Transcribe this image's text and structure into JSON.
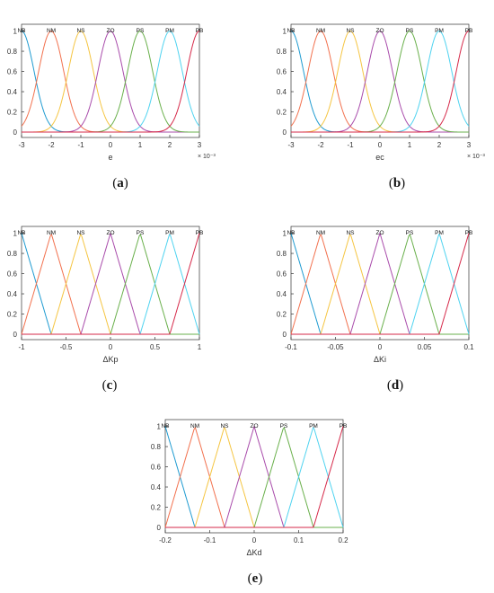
{
  "panels": [
    {
      "id": "a",
      "caption_letter": "a",
      "chart_data": {
        "type": "line",
        "shape": "gaussian",
        "xlabel": "e",
        "exponent_label": "× 10⁻³",
        "xlim": [
          -3,
          3
        ],
        "ylim": [
          0,
          1
        ],
        "xticks": [
          -3,
          -2,
          -1,
          0,
          1,
          2,
          3
        ],
        "xtick_labels": [
          "-3",
          "-2",
          "-1",
          "0",
          "1",
          "2",
          "3"
        ],
        "yticks": [
          0,
          0.2,
          0.4,
          0.6,
          0.8,
          1
        ],
        "ytick_labels": [
          "0",
          "0.2",
          "0.4",
          "0.6",
          "0.8",
          "1"
        ],
        "sigma": 0.42,
        "grid": false,
        "series": [
          {
            "name": "NB",
            "center": -3,
            "color": "#1f9bd1"
          },
          {
            "name": "NM",
            "center": -2,
            "color": "#f2714e"
          },
          {
            "name": "NS",
            "center": -1,
            "color": "#f5c542"
          },
          {
            "name": "ZO",
            "center": 0,
            "color": "#a94cab"
          },
          {
            "name": "PS",
            "center": 1,
            "color": "#6ab04c"
          },
          {
            "name": "PM",
            "center": 2,
            "color": "#4fd3f0"
          },
          {
            "name": "PB",
            "center": 3,
            "color": "#d62a4a"
          }
        ]
      }
    },
    {
      "id": "b",
      "caption_letter": "b",
      "chart_data": {
        "type": "line",
        "shape": "gaussian",
        "xlabel": "ec",
        "exponent_label": "× 10⁻³",
        "xlim": [
          -3,
          3
        ],
        "ylim": [
          0,
          1
        ],
        "xticks": [
          -3,
          -2,
          -1,
          0,
          1,
          2,
          3
        ],
        "xtick_labels": [
          "-3",
          "-2",
          "-1",
          "0",
          "1",
          "2",
          "3"
        ],
        "yticks": [
          0,
          0.2,
          0.4,
          0.6,
          0.8,
          1
        ],
        "ytick_labels": [
          "0",
          "0.2",
          "0.4",
          "0.6",
          "0.8",
          "1"
        ],
        "sigma": 0.42,
        "grid": false,
        "series": [
          {
            "name": "NB",
            "center": -3,
            "color": "#1f9bd1"
          },
          {
            "name": "NM",
            "center": -2,
            "color": "#f2714e"
          },
          {
            "name": "NS",
            "center": -1,
            "color": "#f5c542"
          },
          {
            "name": "ZO",
            "center": 0,
            "color": "#a94cab"
          },
          {
            "name": "PS",
            "center": 1,
            "color": "#6ab04c"
          },
          {
            "name": "PM",
            "center": 2,
            "color": "#4fd3f0"
          },
          {
            "name": "PB",
            "center": 3,
            "color": "#d62a4a"
          }
        ]
      }
    },
    {
      "id": "c",
      "caption_letter": "c",
      "chart_data": {
        "type": "line",
        "shape": "triangular",
        "xlabel": "ΔKp",
        "exponent_label": "",
        "xlim": [
          -1,
          1
        ],
        "ylim": [
          0,
          1
        ],
        "xticks": [
          -1,
          -0.5,
          0,
          0.5,
          1
        ],
        "xtick_labels": [
          "-1",
          "-0.5",
          "0",
          "0.5",
          "1"
        ],
        "yticks": [
          0,
          0.2,
          0.4,
          0.6,
          0.8,
          1
        ],
        "ytick_labels": [
          "0",
          "0.2",
          "0.4",
          "0.6",
          "0.8",
          "1"
        ],
        "half_width": 0.3333,
        "grid": false,
        "series": [
          {
            "name": "NB",
            "center": -1,
            "color": "#1f9bd1"
          },
          {
            "name": "NM",
            "center": -0.6667,
            "color": "#f2714e"
          },
          {
            "name": "NS",
            "center": -0.3333,
            "color": "#f5c542"
          },
          {
            "name": "ZO",
            "center": 0,
            "color": "#a94cab"
          },
          {
            "name": "PS",
            "center": 0.3333,
            "color": "#6ab04c"
          },
          {
            "name": "PM",
            "center": 0.6667,
            "color": "#4fd3f0"
          },
          {
            "name": "PB",
            "center": 1,
            "color": "#d62a4a"
          }
        ]
      }
    },
    {
      "id": "d",
      "caption_letter": "d",
      "chart_data": {
        "type": "line",
        "shape": "triangular",
        "xlabel": "ΔKi",
        "exponent_label": "",
        "xlim": [
          -0.1,
          0.1
        ],
        "ylim": [
          0,
          1
        ],
        "xticks": [
          -0.1,
          -0.05,
          0,
          0.05,
          0.1
        ],
        "xtick_labels": [
          "-0.1",
          "-0.05",
          "0",
          "0.05",
          "0.1"
        ],
        "yticks": [
          0,
          0.2,
          0.4,
          0.6,
          0.8,
          1
        ],
        "ytick_labels": [
          "0",
          "0.2",
          "0.4",
          "0.6",
          "0.8",
          "1"
        ],
        "half_width": 0.03333,
        "grid": false,
        "series": [
          {
            "name": "NB",
            "center": -0.1,
            "color": "#1f9bd1"
          },
          {
            "name": "NM",
            "center": -0.06667,
            "color": "#f2714e"
          },
          {
            "name": "NS",
            "center": -0.03333,
            "color": "#f5c542"
          },
          {
            "name": "ZO",
            "center": 0,
            "color": "#a94cab"
          },
          {
            "name": "PS",
            "center": 0.03333,
            "color": "#6ab04c"
          },
          {
            "name": "PM",
            "center": 0.06667,
            "color": "#4fd3f0"
          },
          {
            "name": "PB",
            "center": 0.1,
            "color": "#d62a4a"
          }
        ]
      }
    },
    {
      "id": "e",
      "caption_letter": "e",
      "chart_data": {
        "type": "line",
        "shape": "triangular",
        "xlabel": "ΔKd",
        "exponent_label": "",
        "xlim": [
          -0.2,
          0.2
        ],
        "ylim": [
          0,
          1
        ],
        "xticks": [
          -0.2,
          -0.1,
          0,
          0.1,
          0.2
        ],
        "xtick_labels": [
          "-0.2",
          "-0.1",
          "0",
          "0.1",
          "0.2"
        ],
        "yticks": [
          0,
          0.2,
          0.4,
          0.6,
          0.8,
          1
        ],
        "ytick_labels": [
          "0",
          "0.2",
          "0.4",
          "0.6",
          "0.8",
          "1"
        ],
        "half_width": 0.06667,
        "grid": false,
        "series": [
          {
            "name": "NB",
            "center": -0.2,
            "color": "#1f9bd1"
          },
          {
            "name": "NM",
            "center": -0.1333,
            "color": "#f2714e"
          },
          {
            "name": "NS",
            "center": -0.06667,
            "color": "#f5c542"
          },
          {
            "name": "ZO",
            "center": 0,
            "color": "#a94cab"
          },
          {
            "name": "PS",
            "center": 0.06667,
            "color": "#6ab04c"
          },
          {
            "name": "PM",
            "center": 0.1333,
            "color": "#4fd3f0"
          },
          {
            "name": "PB",
            "center": 0.2,
            "color": "#d62a4a"
          }
        ]
      }
    }
  ]
}
